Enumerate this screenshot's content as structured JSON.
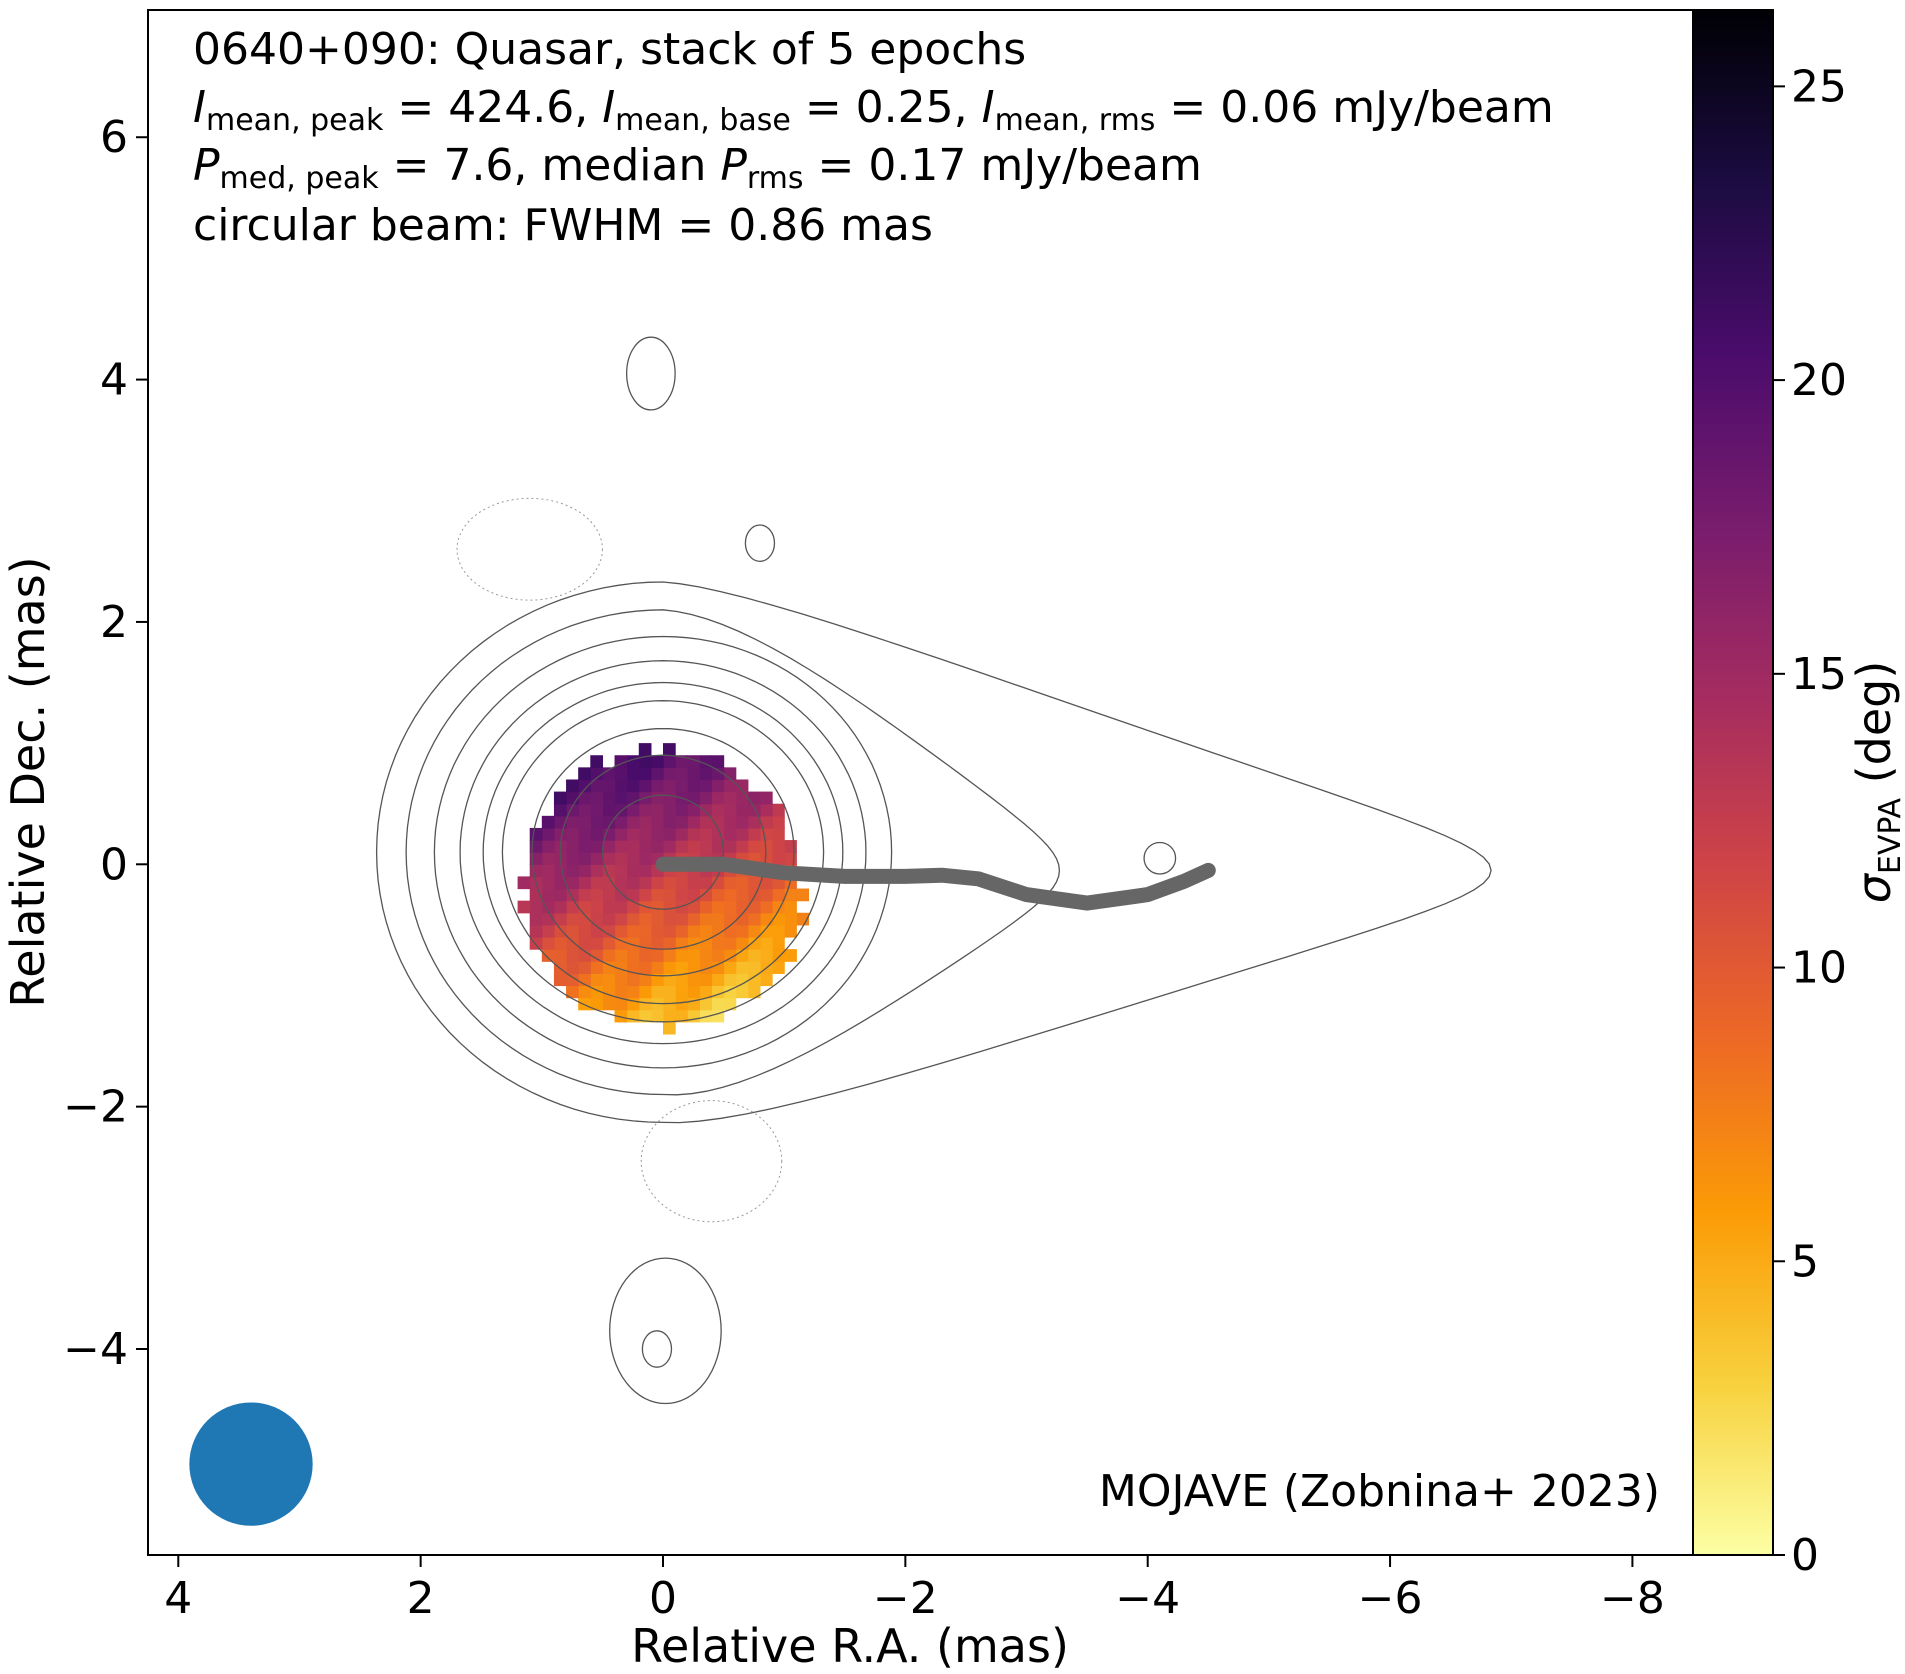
{
  "chart_data": {
    "type": "heatmap",
    "annotations": {
      "line1": "0640+090: Quasar, stack of 5 epochs",
      "line2": {
        "i_symbol": "I",
        "peak_sub": "mean, peak",
        "peak_text": " = 424.6, ",
        "base_sub": "mean, base",
        "base_text": " = 0.25, ",
        "rms_sub": "mean, rms",
        "rms_text": " = 0.06 mJy/beam"
      },
      "line3": {
        "p_symbol": "P",
        "peak_sub": "med, peak",
        "peak_text": " = 7.6, median ",
        "rms_sub": "rms",
        "rms_text": " = 0.17 mJy/beam"
      },
      "line4": "circular beam: FWHM = 0.86 mas",
      "credit": "MOJAVE (Zobnina+ 2023)"
    },
    "xlabel": "Relative R.A. (mas)",
    "ylabel": "Relative Dec. (mas)",
    "xlim": [
      4.25,
      -8.5
    ],
    "ylim": [
      -5.7,
      7.05
    ],
    "x_ticks": [
      4,
      2,
      0,
      -2,
      -4,
      -6,
      -8
    ],
    "x_tick_labels": [
      "4",
      "2",
      "0",
      "−2",
      "−4",
      "−6",
      "−8"
    ],
    "y_ticks": [
      6,
      4,
      2,
      0,
      -2,
      -4
    ],
    "y_tick_labels": [
      "6",
      "4",
      "2",
      "0",
      "−2",
      "−4"
    ],
    "colorbar": {
      "label_symbol": "σ",
      "label_sub": "EVPA",
      "label_unit": " (deg)",
      "range": [
        0,
        26.3
      ],
      "ticks": [
        0,
        5,
        10,
        15,
        20,
        25
      ],
      "tick_labels": [
        "0",
        "5",
        "10",
        "15",
        "20",
        "25"
      ],
      "colormap": "inferno_r",
      "stops": [
        "#fcffa4",
        "#f7d13d",
        "#fb9b06",
        "#ed6925",
        "#cf4446",
        "#a52c60",
        "#781c6d",
        "#4a0c6b",
        "#1b0c41",
        "#000004"
      ]
    },
    "heatmap_region": {
      "shape": "disk",
      "center": [
        0,
        -0.2
      ],
      "radius": 1.15,
      "pixel_size": 0.1,
      "value_range_deg": [
        2,
        21
      ],
      "trend": "high values (dark purple) at north-east, low values (yellow) at south"
    },
    "contours": {
      "center": [
        0,
        0.1
      ],
      "levels_radii": [
        0.47,
        0.8,
        1.02,
        1.25,
        1.4,
        1.58,
        1.78,
        2.0,
        2.23
      ],
      "color": "#555555",
      "outer_jet_extent_x": -6.7,
      "extra_islands": [
        {
          "center": [
            0.1,
            4.05
          ],
          "rx": 0.2,
          "ry": 0.3,
          "style": "solid"
        },
        {
          "center": [
            0.05,
            -4.0
          ],
          "rx": 0.12,
          "ry": 0.15,
          "style": "solid"
        },
        {
          "center": [
            -0.02,
            -3.85
          ],
          "rx": 0.46,
          "ry": 0.6,
          "style": "solid"
        },
        {
          "center": [
            -4.1,
            0.05
          ],
          "rx": 0.13,
          "ry": 0.13,
          "style": "solid"
        },
        {
          "center": [
            -0.8,
            2.65
          ],
          "rx": 0.12,
          "ry": 0.15,
          "style": "solid"
        },
        {
          "center": [
            1.1,
            2.6
          ],
          "rx": 0.6,
          "ry": 0.42,
          "style": "dotted"
        },
        {
          "center": [
            -0.4,
            -2.45
          ],
          "rx": 0.58,
          "ry": 0.5,
          "style": "dotted"
        }
      ]
    },
    "ridgeline": {
      "color": "#666666",
      "x": [
        0,
        -0.5,
        -1,
        -1.5,
        -2,
        -2.3,
        -2.6,
        -3,
        -3.5,
        -4,
        -4.3,
        -4.5
      ],
      "y": [
        0,
        0.0,
        -0.07,
        -0.1,
        -0.1,
        -0.09,
        -0.12,
        -0.25,
        -0.32,
        -0.25,
        -0.14,
        -0.05
      ]
    },
    "beam": {
      "center": [
        3.4,
        -4.95
      ],
      "fwhm_mas": 0.86,
      "color": "#1f77b4"
    },
    "grid": false,
    "legend": "none"
  }
}
